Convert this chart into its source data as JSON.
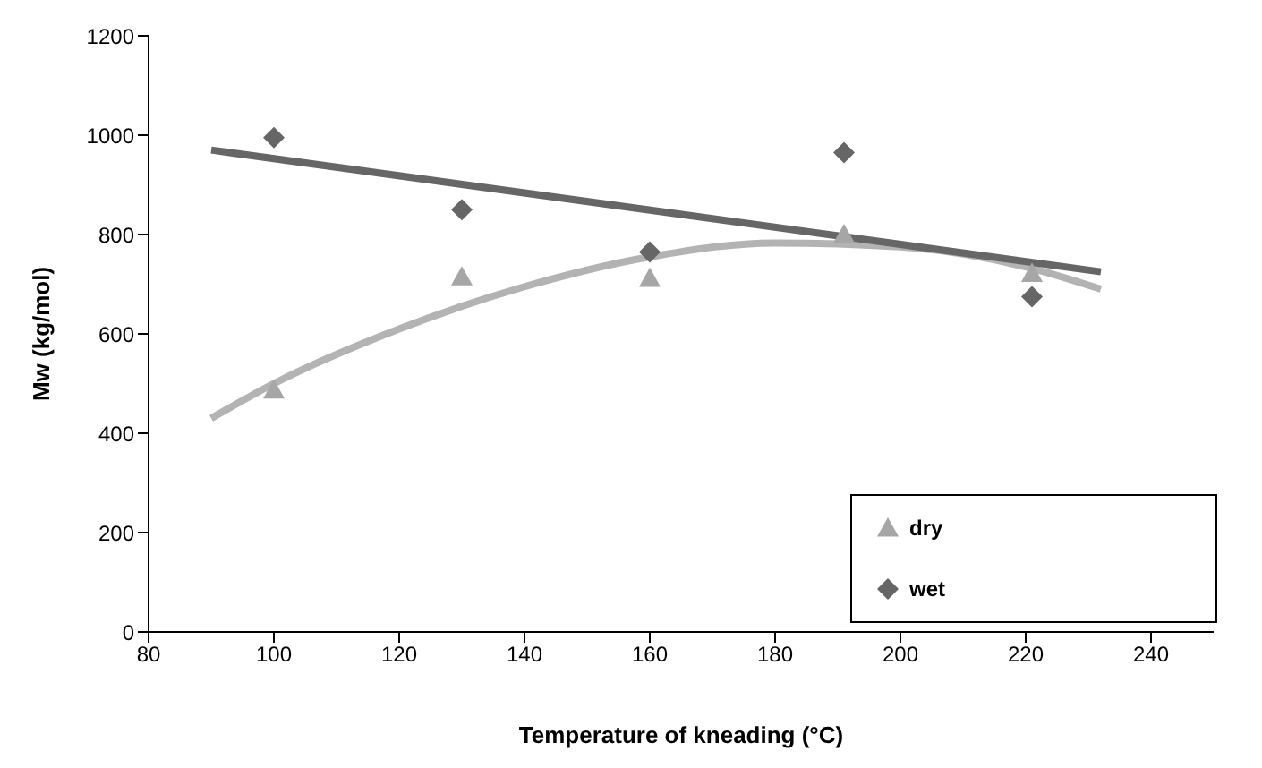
{
  "chart_data": {
    "type": "scatter",
    "xlabel": "Temperature of kneading (°C)",
    "ylabel": "Mw  (kg/mol)",
    "xlim": [
      80,
      250
    ],
    "xticks": [
      80,
      100,
      120,
      140,
      160,
      180,
      200,
      220,
      240
    ],
    "ylim": [
      0,
      1200
    ],
    "yticks": [
      0,
      200,
      400,
      600,
      800,
      1000,
      1200
    ],
    "grid": false,
    "legend": "bottom right",
    "series": [
      {
        "name": "dry",
        "type": "scatter",
        "marker": "triangle",
        "color": "#a6a6a6",
        "x": [
          100,
          130,
          160,
          191,
          221
        ],
        "values": [
          487,
          715,
          712,
          800,
          722
        ]
      },
      {
        "name": "wet",
        "type": "scatter",
        "marker": "diamond",
        "color": "#666666",
        "x": [
          100,
          130,
          160,
          191,
          221
        ],
        "values": [
          995,
          850,
          765,
          965,
          675
        ]
      },
      {
        "type": "line",
        "marker": "none",
        "color": "#b3b3b3",
        "x": [
          90,
          100,
          120,
          140,
          160,
          180,
          200,
          220,
          232
        ],
        "values": [
          430,
          500,
          610,
          695,
          755,
          783,
          775,
          735,
          690
        ]
      },
      {
        "type": "line",
        "marker": "none",
        "color": "#666666",
        "x": [
          90,
          232
        ],
        "values": [
          970,
          725
        ]
      }
    ]
  }
}
